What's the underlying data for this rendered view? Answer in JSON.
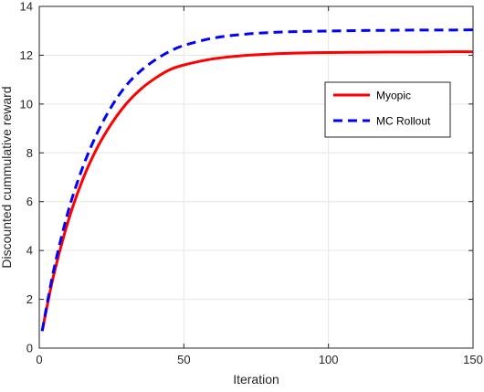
{
  "chart_data": {
    "type": "line",
    "xlabel": "Iteration",
    "ylabel": "Discounted cummulative reward",
    "xlim": [
      0,
      150
    ],
    "ylim": [
      0,
      14
    ],
    "xticks": [
      0,
      50,
      100,
      150
    ],
    "yticks": [
      0,
      2,
      4,
      6,
      8,
      10,
      12,
      14
    ],
    "grid": true,
    "legend_position": "right, upper-middle",
    "series": [
      {
        "name": "Myopic",
        "color": "#ff0000",
        "style": "solid",
        "x": [
          1,
          5,
          10,
          15,
          20,
          25,
          30,
          35,
          40,
          45,
          50,
          60,
          70,
          80,
          90,
          100,
          110,
          120,
          130,
          140,
          150
        ],
        "y": [
          0.7,
          3.0,
          5.2,
          6.9,
          8.2,
          9.2,
          10.0,
          10.6,
          11.05,
          11.4,
          11.6,
          11.85,
          11.98,
          12.05,
          12.09,
          12.11,
          12.12,
          12.13,
          12.13,
          12.14,
          12.14
        ]
      },
      {
        "name": "MC Rollout",
        "color": "#0000ff",
        "style": "dashed",
        "x": [
          1,
          5,
          10,
          15,
          20,
          25,
          30,
          35,
          40,
          45,
          50,
          60,
          70,
          80,
          90,
          100,
          110,
          120,
          130,
          140,
          150
        ],
        "y": [
          0.7,
          3.2,
          5.6,
          7.4,
          8.8,
          9.9,
          10.75,
          11.35,
          11.8,
          12.15,
          12.4,
          12.7,
          12.85,
          12.93,
          12.97,
          12.99,
          13.01,
          13.02,
          13.03,
          13.03,
          13.04
        ]
      }
    ]
  }
}
